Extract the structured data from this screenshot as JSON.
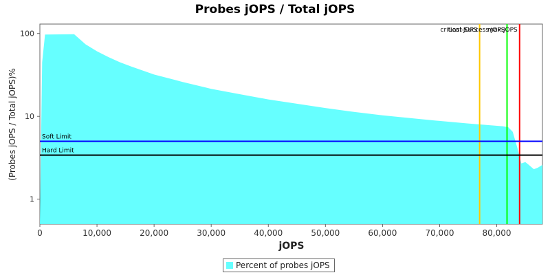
{
  "title": "Probes jOPS / Total jOPS",
  "colors": {
    "fill": "#66ffff",
    "soft": "#0000ff",
    "hard": "#000000",
    "orange": "#ffc800",
    "green": "#00ff00",
    "red": "#ff0000",
    "frame": "#666666"
  },
  "chart_data": {
    "type": "area",
    "title": "Probes jOPS / Total jOPS",
    "xlabel": "jOPS",
    "ylabel": "(Probes jOPS / Total jOPS)%",
    "xlim": [
      0,
      88000
    ],
    "ylim": [
      0.5,
      130
    ],
    "yscale": "log",
    "x_ticks": [
      0,
      10000,
      20000,
      30000,
      40000,
      50000,
      60000,
      70000,
      80000
    ],
    "x_tick_labels": [
      "0",
      "10,000",
      "20,000",
      "30,000",
      "40,000",
      "50,000",
      "60,000",
      "70,000",
      "80,000"
    ],
    "y_ticks": [
      1,
      10,
      100
    ],
    "y_tick_labels": [
      "1",
      "10",
      "100"
    ],
    "grid": false,
    "legend_position": "bottom",
    "series": [
      {
        "name": "Percent of probes jOPS",
        "x": [
          0,
          400,
          900,
          6000,
          8000,
          10000,
          12000,
          14000,
          16000,
          20000,
          25000,
          30000,
          35000,
          40000,
          45000,
          50000,
          55000,
          60000,
          65000,
          70000,
          75000,
          78000,
          81000,
          82000,
          82800,
          83600,
          84300,
          85000,
          85600,
          86500,
          87200,
          88000
        ],
        "y": [
          0,
          45,
          97,
          98,
          74,
          61,
          52,
          45,
          40,
          32,
          26,
          21.5,
          18.5,
          16,
          14.2,
          12.6,
          11.3,
          10.3,
          9.5,
          8.8,
          8.2,
          7.9,
          7.6,
          7.4,
          6.5,
          4.2,
          2.7,
          2.8,
          2.6,
          2.3,
          2.4,
          2.6
        ]
      }
    ],
    "hlines": [
      {
        "name": "Soft Limit",
        "y": 5,
        "color": "#0000ff"
      },
      {
        "name": "Hard Limit",
        "y": 3.4,
        "color": "#000000"
      }
    ],
    "vlines": [
      {
        "label": "critical-jOPS",
        "x": 77000,
        "color": "#ffc800"
      },
      {
        "label": "Last Success jOPS",
        "x": 81800,
        "color": "#00ff00"
      },
      {
        "label": "max-jOPS",
        "x": 84000,
        "color": "#ff0000"
      }
    ]
  }
}
